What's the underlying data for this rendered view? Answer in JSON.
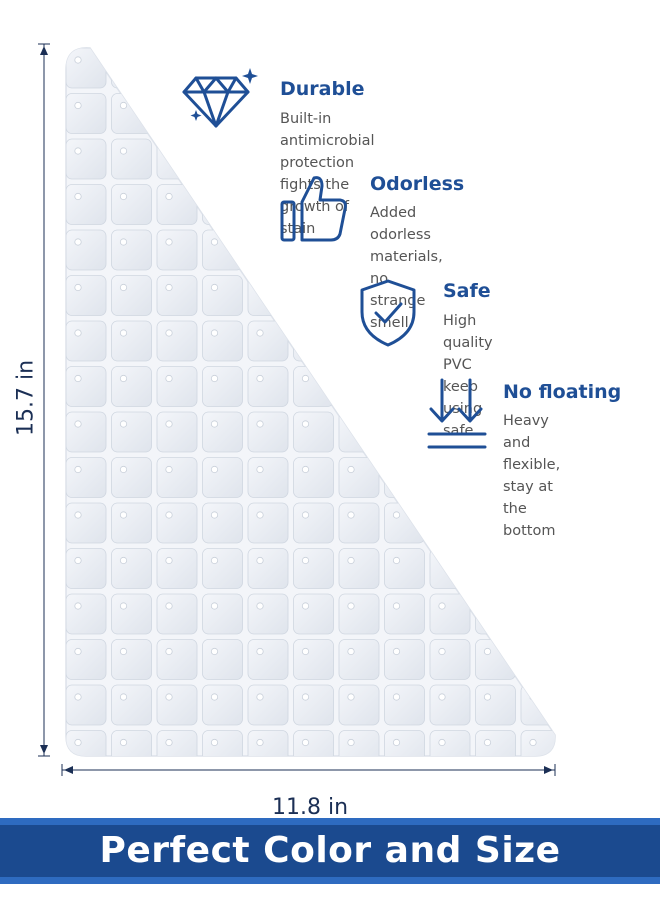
{
  "dimensions": {
    "height_label": "15.7 in",
    "width_label": "11.8 in"
  },
  "features": [
    {
      "icon": "diamond-icon",
      "title": "Durable",
      "description": "Built-in antimicrobial protection\nfights the growth of stain"
    },
    {
      "icon": "thumbs-up-icon",
      "title": "Odorless",
      "description": "Added odorless materials, no\nstrange smell"
    },
    {
      "icon": "shield-check-icon",
      "title": "Safe",
      "description": "High quality PVC keep\nusing safe"
    },
    {
      "icon": "down-arrows-icon",
      "title": "No floating",
      "description": "Heavy and flexible,\nstay at the bottom"
    }
  ],
  "banner": {
    "text": "Perfect Color and Size"
  },
  "colors": {
    "accent": "#1f4f96",
    "banner": "#1b4a8f",
    "mat": "#eef1f6"
  }
}
